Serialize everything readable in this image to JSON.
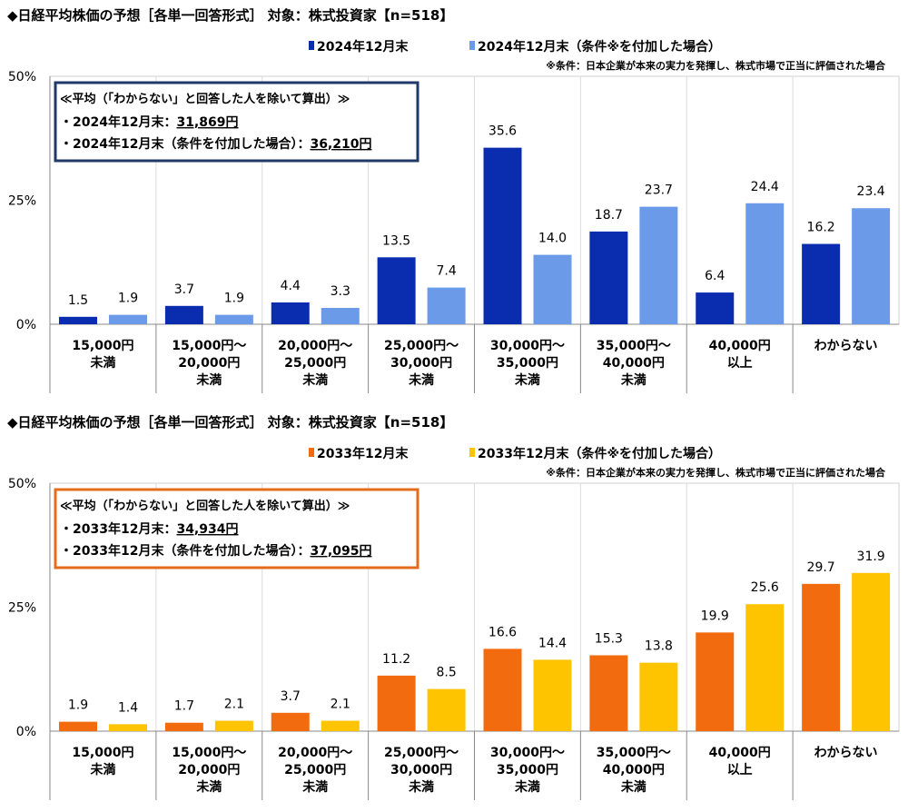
{
  "chart_data": [
    {
      "type": "bar",
      "title": "◆日経平均株価の予想［各単一回答形式］ 対象：株式投資家【n=518】",
      "note": "※条件：日本企業が本来の実力を発揮し、株式市場で正当に評価された場合",
      "legend_placement": "top",
      "ylim": [
        0,
        50
      ],
      "yticks": [
        "0%",
        "25%",
        "50%"
      ],
      "ytick_values": [
        0,
        25,
        50
      ],
      "grid": true,
      "categories": [
        [
          "15,000円",
          "未満"
        ],
        [
          "15,000円～",
          "20,000円",
          "未満"
        ],
        [
          "20,000円～",
          "25,000円",
          "未満"
        ],
        [
          "25,000円～",
          "30,000円",
          "未満"
        ],
        [
          "30,000円～",
          "35,000円",
          "未満"
        ],
        [
          "35,000円～",
          "40,000円",
          "未満"
        ],
        [
          "40,000円",
          "以上"
        ],
        [
          "わからない"
        ]
      ],
      "series": [
        {
          "name": "2024年12月末",
          "color": "#0a2db0",
          "values": [
            1.5,
            3.7,
            4.4,
            13.5,
            35.6,
            18.7,
            6.4,
            16.2
          ]
        },
        {
          "name": "2024年12月末（条件※を付加した場合）",
          "color": "#6b9be8",
          "values": [
            1.9,
            1.9,
            3.3,
            7.4,
            14.0,
            23.7,
            24.4,
            23.4
          ]
        }
      ],
      "avg_box": {
        "border_color": "#1f3a68",
        "heading": "≪平均（「わからない」と回答した人を除いて算出）≫",
        "lines": [
          {
            "label": "・2024年12月末：",
            "value": "31,869円"
          },
          {
            "label": "・2024年12月末（条件を付加した場合）：",
            "value": "36,210円"
          }
        ]
      }
    },
    {
      "type": "bar",
      "title": "◆日経平均株価の予想［各単一回答形式］ 対象：株式投資家【n=518】",
      "note": "※条件：日本企業が本来の実力を発揮し、株式市場で正当に評価された場合",
      "legend_placement": "top",
      "ylim": [
        0,
        50
      ],
      "yticks": [
        "0%",
        "25%",
        "50%"
      ],
      "ytick_values": [
        0,
        25,
        50
      ],
      "grid": true,
      "categories": [
        [
          "15,000円",
          "未満"
        ],
        [
          "15,000円～",
          "20,000円",
          "未満"
        ],
        [
          "20,000円～",
          "25,000円",
          "未満"
        ],
        [
          "25,000円～",
          "30,000円",
          "未満"
        ],
        [
          "30,000円～",
          "35,000円",
          "未満"
        ],
        [
          "35,000円～",
          "40,000円",
          "未満"
        ],
        [
          "40,000円",
          "以上"
        ],
        [
          "わからない"
        ]
      ],
      "series": [
        {
          "name": "2033年12月末",
          "color": "#f26b0f",
          "values": [
            1.9,
            1.7,
            3.7,
            11.2,
            16.6,
            15.3,
            19.9,
            29.7
          ]
        },
        {
          "name": "2033年12月末（条件※を付加した場合）",
          "color": "#ffc400",
          "values": [
            1.4,
            2.1,
            2.1,
            8.5,
            14.4,
            13.8,
            25.6,
            31.9
          ]
        }
      ],
      "avg_box": {
        "border_color": "#e46c1f",
        "heading": "≪平均（「わからない」と回答した人を除いて算出）≫",
        "lines": [
          {
            "label": "・2033年12月末：",
            "value": "34,934円"
          },
          {
            "label": "・2033年12月末（条件を付加した場合）：",
            "value": "37,095円"
          }
        ]
      }
    }
  ]
}
